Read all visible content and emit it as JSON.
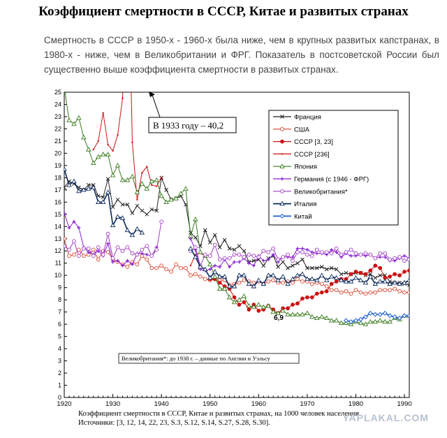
{
  "title": "Коэффициент смертности в СССР, Китае и развитых странах",
  "intro": "Смертность в СССР в 1950-х - 1960-х была ниже, чем в крупных развитых капстранах, в 1980-х - ниже, чем в Великобритании и ФРГ. Показатель в постсоветской России был существенно выше коэффициента смертности в развитых странах.",
  "caption": "Коэффициент смертности в СССР, Китае и развитых странах, на 1000 человек населения. Источники: [3, 12, 14, 22, 23, S.3, S.12, S.14, S.27, S.28, S.30].",
  "watermark": "YAPLAKAL.COM",
  "chart_data": {
    "type": "line",
    "title": "",
    "xlabel": "",
    "ylabel": "",
    "xlim": [
      1920,
      1991
    ],
    "ylim": [
      0,
      25
    ],
    "xticks": [
      1920,
      1930,
      1940,
      1950,
      1960,
      1970,
      1980,
      1990
    ],
    "yticks": [
      0,
      1,
      2,
      3,
      4,
      5,
      6,
      7,
      8,
      9,
      10,
      11,
      12,
      13,
      14,
      15,
      16,
      17,
      18,
      19,
      20,
      21,
      22,
      23,
      24,
      25
    ],
    "grid": false,
    "legend_position": "top-right",
    "annotations": {
      "ussr_1933": "В 1933 году – 40,2",
      "min_value": "6,9",
      "uk_note": "Великобритания*: до 1938 г. – данные по Англии и Уэльсу"
    },
    "series": [
      {
        "name": "Франция",
        "color": "#222222",
        "marker": "x",
        "x": [
          1920,
          1921,
          1922,
          1923,
          1924,
          1925,
          1926,
          1927,
          1928,
          1929,
          1930,
          1931,
          1932,
          1933,
          1934,
          1935,
          1936,
          1937,
          1938,
          1939,
          1940,
          1941,
          1942,
          1943,
          1944,
          1945,
          1946,
          1947,
          1948,
          1949,
          1950,
          1951,
          1952,
          1953,
          1954,
          1955,
          1956,
          1957,
          1958,
          1959,
          1960,
          1961,
          1962,
          1963,
          1964,
          1965,
          1966,
          1967,
          1968,
          1969,
          1970,
          1971,
          1972,
          1973,
          1974,
          1975,
          1976,
          1977,
          1978,
          1979,
          1980,
          1981,
          1982,
          1983,
          1984,
          1985,
          1986,
          1987,
          1988,
          1989,
          1990,
          1991
        ],
        "values": [
          17.2,
          17.7,
          17.5,
          17.2,
          17.0,
          17.4,
          17.4,
          16.5,
          16.4,
          17.9,
          15.6,
          16.2,
          15.8,
          15.8,
          15.1,
          15.7,
          15.3,
          15.0,
          15.4,
          15.3,
          18.0,
          17.0,
          16.2,
          16.3,
          16.5,
          15.8,
          13.5,
          13.1,
          12.4,
          13.7,
          12.7,
          13.3,
          12.3,
          12.9,
          12.2,
          12.1,
          12.4,
          12.0,
          11.1,
          11.2,
          11.3,
          10.8,
          11.4,
          11.6,
          10.7,
          11.1,
          10.6,
          10.8,
          11.0,
          11.3,
          10.6,
          10.6,
          10.6,
          10.7,
          10.5,
          10.6,
          10.5,
          10.1,
          10.2,
          10.1,
          10.2,
          10.2,
          10.0,
          10.1,
          9.8,
          10.0,
          10.0,
          9.5,
          9.4,
          9.4,
          9.3,
          9.2
        ]
      },
      {
        "name": "США",
        "color": "#d9442e",
        "marker": "o",
        "x": [
          1920,
          1921,
          1922,
          1923,
          1924,
          1925,
          1926,
          1927,
          1928,
          1929,
          1930,
          1931,
          1932,
          1933,
          1934,
          1935,
          1936,
          1937,
          1938,
          1939,
          1940,
          1941,
          1942,
          1943,
          1944,
          1945,
          1946,
          1947,
          1948,
          1949,
          1950,
          1951,
          1952,
          1953,
          1954,
          1955,
          1956,
          1957,
          1958,
          1959,
          1960,
          1961,
          1962,
          1963,
          1964,
          1965,
          1966,
          1967,
          1968,
          1969,
          1970,
          1971,
          1972,
          1973,
          1974,
          1975,
          1976,
          1977,
          1978,
          1979,
          1980,
          1981,
          1982,
          1983,
          1984,
          1985,
          1986,
          1987,
          1988,
          1989,
          1990,
          1991
        ],
        "values": [
          13.0,
          11.6,
          11.7,
          12.1,
          11.6,
          11.7,
          12.1,
          11.3,
          12.0,
          11.9,
          11.3,
          11.1,
          10.9,
          10.7,
          11.1,
          10.9,
          11.6,
          11.3,
          10.6,
          10.6,
          10.8,
          10.5,
          10.3,
          10.9,
          10.6,
          10.6,
          10.0,
          10.1,
          9.9,
          9.7,
          9.6,
          9.7,
          9.6,
          9.6,
          9.2,
          9.3,
          9.4,
          9.6,
          9.5,
          9.4,
          9.5,
          9.3,
          9.5,
          9.6,
          9.4,
          9.4,
          9.5,
          9.4,
          9.7,
          9.5,
          9.5,
          9.3,
          9.4,
          9.3,
          9.1,
          8.8,
          8.8,
          8.6,
          8.7,
          8.5,
          8.8,
          8.6,
          8.5,
          8.6,
          8.6,
          8.8,
          8.8,
          8.8,
          8.9,
          8.7,
          8.6,
          8.6
        ]
      },
      {
        "name": "СССР [3, 23]",
        "color": "#cc1111",
        "marker": "o",
        "x": [
          1950,
          1951,
          1952,
          1953,
          1954,
          1955,
          1956,
          1957,
          1958,
          1959,
          1960,
          1961,
          1962,
          1963,
          1964,
          1965,
          1966,
          1967,
          1968,
          1969,
          1970,
          1971,
          1972,
          1973,
          1974,
          1975,
          1976,
          1977,
          1978,
          1979,
          1980,
          1981,
          1982,
          1983,
          1984,
          1985,
          1986,
          1987,
          1988,
          1989,
          1990,
          1991
        ],
        "values": [
          9.7,
          9.7,
          9.4,
          9.1,
          8.9,
          8.2,
          7.6,
          7.8,
          7.2,
          7.6,
          7.1,
          7.2,
          7.5,
          7.2,
          6.9,
          7.3,
          7.3,
          7.6,
          7.7,
          8.1,
          8.2,
          8.2,
          8.5,
          8.6,
          8.7,
          9.3,
          9.5,
          9.7,
          9.7,
          10.1,
          10.3,
          10.2,
          10.1,
          10.4,
          10.8,
          10.6,
          9.8,
          9.9,
          10.1,
          10.0,
          10.3,
          10.4
        ]
      },
      {
        "name": "СССР [236]",
        "color": "#cc1111",
        "marker": "dot",
        "x": [
          1926,
          1927,
          1928,
          1929,
          1930,
          1931,
          1932,
          1933,
          1934,
          1935,
          1936,
          1937,
          1938,
          1939,
          1940,
          1946,
          1947,
          1948,
          1949
        ],
        "values": [
          20.3,
          21.0,
          23.3,
          20.7,
          20.2,
          21.5,
          24.5,
          40.2,
          20.9,
          16.2,
          18.4,
          18.9,
          17.4,
          17.3,
          18.0,
          10.8,
          11.7,
          11.8,
          11.6
        ]
      },
      {
        "name": "Япония",
        "color": "#3a7a1f",
        "marker": "triangle-open",
        "x": [
          1920,
          1921,
          1922,
          1923,
          1924,
          1925,
          1926,
          1927,
          1928,
          1929,
          1930,
          1931,
          1932,
          1933,
          1934,
          1935,
          1936,
          1937,
          1938,
          1939,
          1940,
          1941,
          1942,
          1943,
          1944,
          1945,
          1946,
          1947,
          1948,
          1949,
          1950,
          1951,
          1952,
          1953,
          1954,
          1955,
          1956,
          1957,
          1958,
          1959,
          1960,
          1961,
          1962,
          1963,
          1964,
          1965,
          1966,
          1967,
          1968,
          1969,
          1970,
          1971,
          1972,
          1973,
          1974,
          1975,
          1976,
          1977,
          1978,
          1979,
          1980,
          1981,
          1982,
          1983,
          1984,
          1985,
          1986,
          1987,
          1988,
          1989,
          1990,
          1991
        ],
        "values": [
          25.4,
          22.7,
          22.4,
          22.9,
          21.3,
          20.3,
          19.2,
          19.7,
          19.9,
          19.9,
          18.2,
          19.0,
          17.8,
          17.8,
          18.1,
          16.8,
          17.5,
          17.1,
          17.7,
          17.8,
          16.5,
          16.0,
          16.2,
          16.3,
          16.7,
          17.1,
          13.2,
          14.6,
          11.9,
          11.6,
          10.9,
          9.9,
          8.9,
          8.9,
          8.2,
          7.8,
          8.0,
          8.3,
          7.5,
          7.4,
          7.6,
          7.4,
          7.5,
          7.0,
          6.9,
          7.1,
          6.8,
          6.8,
          6.8,
          6.8,
          6.9,
          6.6,
          6.5,
          6.6,
          6.5,
          6.3,
          6.3,
          6.1,
          6.1,
          6.0,
          6.2,
          6.1,
          6.0,
          6.2,
          6.2,
          6.3,
          6.2,
          6.2,
          6.5,
          6.4,
          6.7,
          6.7
        ]
      },
      {
        "name": "Германия (с 1946 - ФРГ)",
        "color": "#8a1fd1",
        "marker": "plus",
        "x": [
          1920,
          1921,
          1922,
          1923,
          1924,
          1925,
          1926,
          1927,
          1928,
          1929,
          1930,
          1931,
          1932,
          1933,
          1934,
          1935,
          1936,
          1937,
          1938,
          1939,
          1946,
          1947,
          1948,
          1949,
          1950,
          1951,
          1952,
          1953,
          1954,
          1955,
          1956,
          1957,
          1958,
          1959,
          1960,
          1961,
          1962,
          1963,
          1964,
          1965,
          1966,
          1967,
          1968,
          1969,
          1970,
          1971,
          1972,
          1973,
          1974,
          1975,
          1976,
          1977,
          1978,
          1979,
          1980,
          1981,
          1982,
          1983,
          1984,
          1985,
          1986,
          1987,
          1988,
          1989,
          1990,
          1991
        ],
        "values": [
          15.1,
          13.9,
          14.4,
          13.9,
          12.3,
          11.9,
          11.7,
          12.0,
          11.6,
          12.6,
          11.1,
          11.2,
          10.8,
          11.2,
          10.9,
          11.8,
          11.8,
          11.7,
          11.6,
          12.3,
          13.0,
          12.1,
          10.5,
          10.4,
          10.5,
          10.8,
          10.7,
          11.3,
          10.7,
          11.1,
          11.1,
          11.4,
          11.0,
          10.8,
          11.6,
          11.2,
          11.3,
          11.7,
          11.1,
          11.5,
          11.5,
          11.5,
          12.2,
          12.2,
          12.1,
          11.9,
          11.8,
          11.8,
          11.7,
          12.1,
          11.9,
          11.5,
          11.8,
          11.6,
          11.6,
          11.7,
          11.6,
          11.7,
          11.4,
          11.5,
          11.5,
          11.2,
          11.2,
          11.4,
          11.6,
          11.4
        ]
      },
      {
        "name": "Великобритания*",
        "color": "#a13fc2",
        "marker": "o-open",
        "x": [
          1920,
          1921,
          1922,
          1923,
          1924,
          1925,
          1926,
          1927,
          1928,
          1929,
          1930,
          1931,
          1932,
          1933,
          1934,
          1935,
          1936,
          1937,
          1938,
          1939,
          1940,
          1946,
          1947,
          1948,
          1949,
          1950,
          1951,
          1952,
          1953,
          1954,
          1955,
          1956,
          1957,
          1958,
          1959,
          1960,
          1961,
          1962,
          1963,
          1964,
          1965,
          1966,
          1967,
          1968,
          1969,
          1970,
          1971,
          1972,
          1973,
          1974,
          1975,
          1976,
          1977,
          1978,
          1979,
          1980,
          1981,
          1982,
          1983,
          1984,
          1985,
          1986,
          1987,
          1988,
          1989,
          1990,
          1991
        ],
        "values": [
          12.4,
          12.1,
          12.8,
          11.6,
          12.2,
          12.2,
          11.6,
          12.3,
          11.7,
          13.4,
          11.4,
          12.3,
          12.0,
          12.3,
          11.8,
          11.7,
          12.1,
          12.4,
          11.6,
          12.1,
          14.4,
          12.0,
          12.3,
          10.8,
          11.7,
          11.6,
          12.5,
          11.3,
          11.4,
          11.4,
          11.7,
          11.7,
          11.5,
          11.7,
          11.6,
          11.5,
          12.0,
          11.9,
          12.2,
          11.3,
          11.5,
          11.7,
          11.2,
          11.9,
          11.9,
          11.7,
          11.6,
          12.1,
          11.9,
          11.9,
          11.8,
          12.2,
          11.7,
          11.9,
          12.1,
          11.8,
          11.7,
          11.8,
          11.7,
          11.4,
          11.8,
          11.8,
          11.3,
          11.4,
          11.5,
          11.2,
          11.3
        ]
      },
      {
        "name": "Италия",
        "color": "#0e2a5c",
        "marker": "triangle-open",
        "x": [
          1920,
          1921,
          1922,
          1923,
          1924,
          1925,
          1926,
          1927,
          1928,
          1929,
          1930,
          1931,
          1932,
          1933,
          1934,
          1935,
          1936,
          1946,
          1947,
          1948,
          1949,
          1950,
          1951,
          1952,
          1953,
          1954,
          1955,
          1956,
          1957,
          1958,
          1959,
          1960,
          1961,
          1962,
          1963,
          1964,
          1965,
          1966,
          1967,
          1968,
          1969,
          1970,
          1971,
          1972,
          1973,
          1974,
          1975,
          1976,
          1977,
          1978,
          1979,
          1980,
          1981,
          1982,
          1983,
          1984,
          1985,
          1986,
          1987,
          1988,
          1989,
          1990,
          1991
        ],
        "values": [
          18.7,
          17.4,
          17.7,
          16.9,
          17.0,
          17.1,
          17.2,
          16.0,
          16.0,
          16.8,
          14.1,
          14.8,
          14.7,
          13.7,
          13.3,
          13.8,
          13.5,
          12.2,
          11.5,
          10.7,
          10.5,
          9.8,
          10.3,
          9.9,
          9.9,
          9.1,
          9.1,
          10.0,
          10.0,
          9.3,
          9.1,
          9.6,
          9.3,
          10.0,
          10.0,
          9.6,
          9.9,
          9.3,
          9.7,
          10.0,
          10.1,
          9.7,
          9.7,
          9.6,
          10.0,
          9.6,
          9.9,
          9.8,
          9.6,
          9.5,
          9.5,
          9.8,
          9.6,
          9.4,
          9.9,
          9.3,
          9.5,
          9.5,
          9.3,
          9.4,
          9.3,
          9.4,
          9.6
        ]
      },
      {
        "name": "Китай",
        "color": "#1f5dd1",
        "marker": "diamond",
        "x": [
          1978,
          1979,
          1980,
          1981,
          1982,
          1983,
          1984,
          1985,
          1986,
          1987,
          1988,
          1989,
          1990,
          1991
        ],
        "values": [
          6.3,
          6.2,
          6.3,
          6.4,
          6.6,
          6.9,
          6.8,
          6.8,
          6.9,
          6.7,
          6.6,
          6.5,
          6.7,
          6.7
        ]
      }
    ]
  }
}
